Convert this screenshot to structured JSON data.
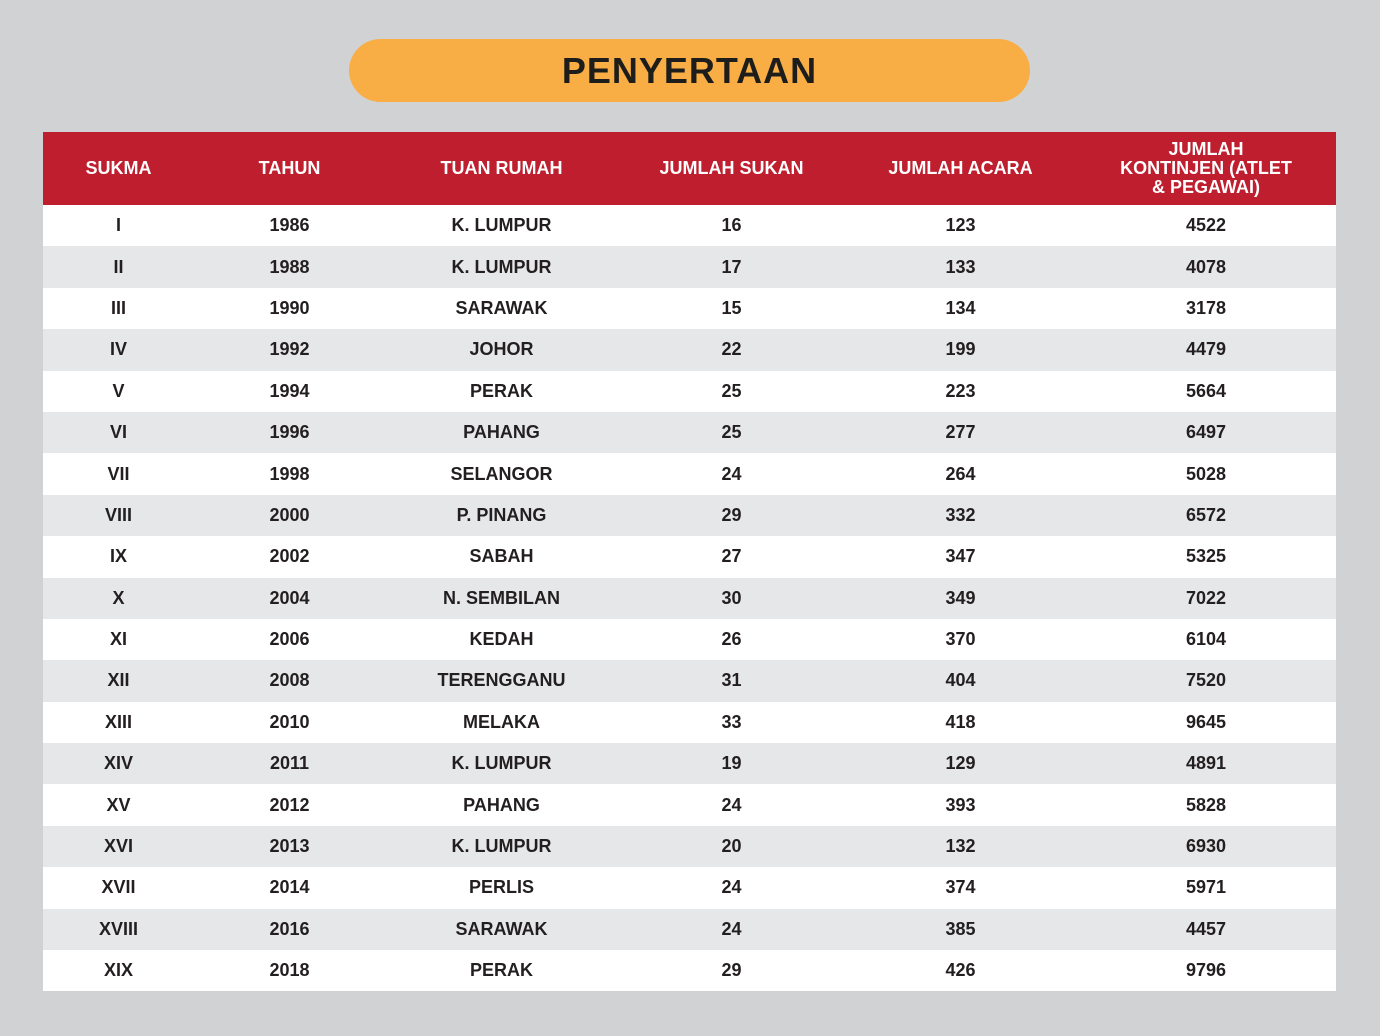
{
  "header": {
    "title": "PENYERTAAN"
  },
  "table": {
    "columns": [
      "SUKMA",
      "TAHUN",
      "TUAN RUMAH",
      "JUMLAH SUKAN",
      "JUMLAH ACARA",
      "JUMLAH KONTINJEN (ATLET & PEGAWAI)"
    ],
    "rows": [
      [
        "I",
        1986,
        "K. LUMPUR",
        16,
        123,
        4522
      ],
      [
        "II",
        1988,
        "K. LUMPUR",
        17,
        133,
        4078
      ],
      [
        "III",
        1990,
        "SARAWAK",
        15,
        134,
        3178
      ],
      [
        "IV",
        1992,
        "JOHOR",
        22,
        199,
        4479
      ],
      [
        "V",
        1994,
        "PERAK",
        25,
        223,
        5664
      ],
      [
        "VI",
        1996,
        "PAHANG",
        25,
        277,
        6497
      ],
      [
        "VII",
        1998,
        "SELANGOR",
        24,
        264,
        5028
      ],
      [
        "VIII",
        2000,
        "P. PINANG",
        29,
        332,
        6572
      ],
      [
        "IX",
        2002,
        "SABAH",
        27,
        347,
        5325
      ],
      [
        "X",
        2004,
        "N. SEMBILAN",
        30,
        349,
        7022
      ],
      [
        "XI",
        2006,
        "KEDAH",
        26,
        370,
        6104
      ],
      [
        "XII",
        2008,
        "TERENGGANU",
        31,
        404,
        7520
      ],
      [
        "XIII",
        2010,
        "MELAKA",
        33,
        418,
        9645
      ],
      [
        "XIV",
        2011,
        "K. LUMPUR",
        19,
        129,
        4891
      ],
      [
        "XV",
        2012,
        "PAHANG",
        24,
        393,
        5828
      ],
      [
        "XVI",
        2013,
        "K. LUMPUR",
        20,
        132,
        6930
      ],
      [
        "XVII",
        2014,
        "PERLIS",
        24,
        374,
        5971
      ],
      [
        "XVIII",
        2016,
        "SARAWAK",
        24,
        385,
        4457
      ],
      [
        "XIX",
        2018,
        "PERAK",
        29,
        426,
        9796
      ]
    ]
  }
}
